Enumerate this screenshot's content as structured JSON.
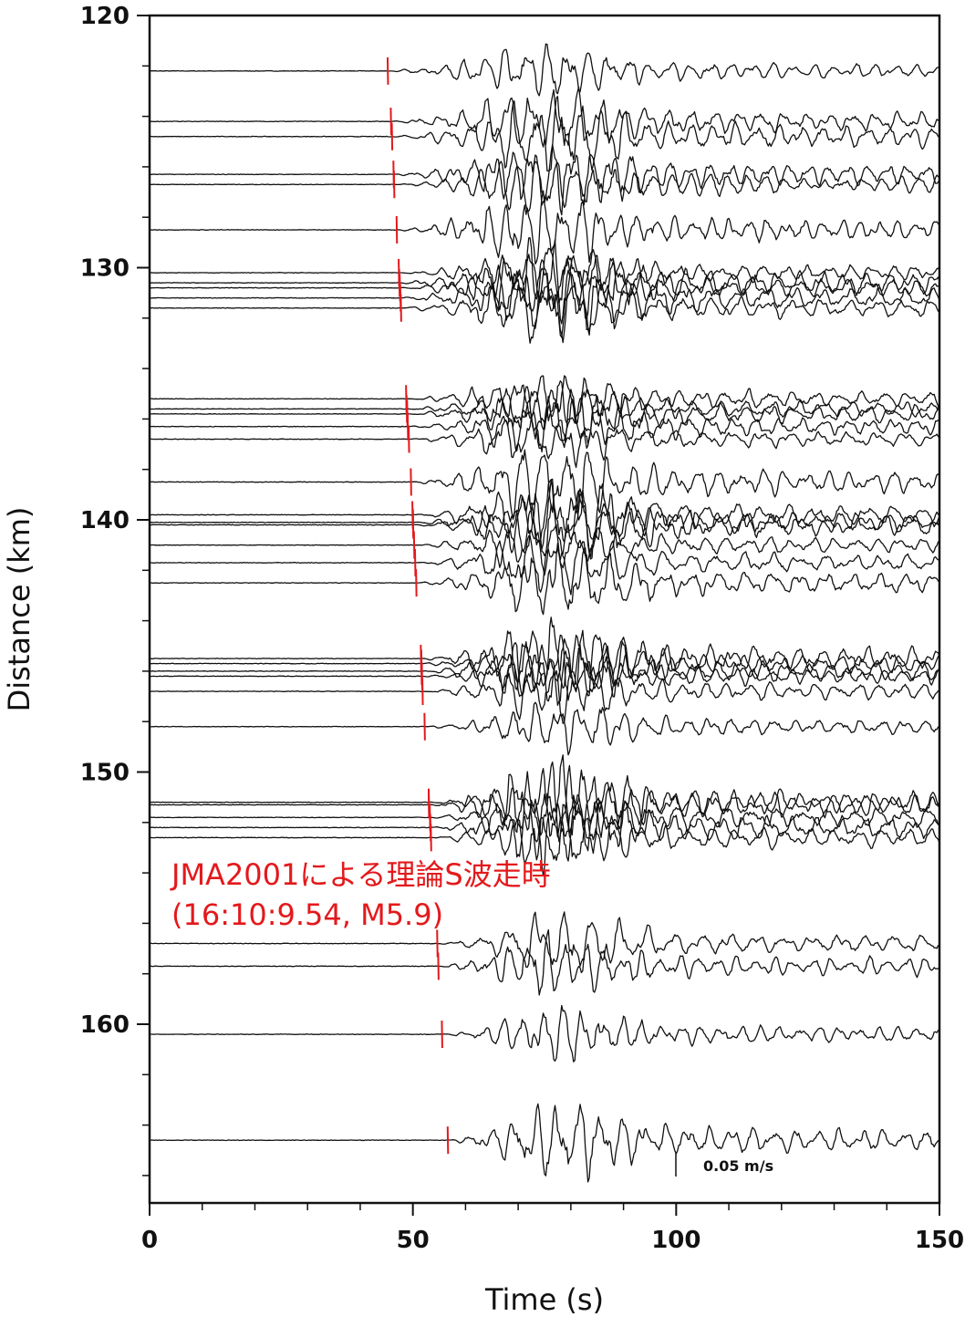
{
  "chart_data": {
    "type": "line",
    "xlabel": "Time (s)",
    "ylabel": "Distance (km)",
    "xlim": [
      0,
      150
    ],
    "ylim": [
      120,
      166
    ],
    "y_inverted": true,
    "x_ticks": [
      0,
      50,
      100,
      150
    ],
    "y_ticks": [
      120,
      130,
      140,
      150,
      160
    ],
    "grid": false,
    "annotation_line1": "JMA2001による理論S波走時",
    "annotation_line2": "(16:10:9.54, M5.9)",
    "scale_bar_label": "0.05 m/s",
    "marker_color": "#e3191c",
    "trace_color": "#111111",
    "traces": [
      {
        "distance_km": 122.2,
        "s_arrival_s": 45.2
      },
      {
        "distance_km": 124.2,
        "s_arrival_s": 45.8
      },
      {
        "distance_km": 124.8,
        "s_arrival_s": 46.0
      },
      {
        "distance_km": 126.3,
        "s_arrival_s": 46.3
      },
      {
        "distance_km": 126.7,
        "s_arrival_s": 46.4
      },
      {
        "distance_km": 128.5,
        "s_arrival_s": 46.9
      },
      {
        "distance_km": 130.2,
        "s_arrival_s": 47.3
      },
      {
        "distance_km": 130.6,
        "s_arrival_s": 47.4
      },
      {
        "distance_km": 130.8,
        "s_arrival_s": 47.5
      },
      {
        "distance_km": 131.2,
        "s_arrival_s": 47.6
      },
      {
        "distance_km": 131.6,
        "s_arrival_s": 47.7
      },
      {
        "distance_km": 135.2,
        "s_arrival_s": 48.7
      },
      {
        "distance_km": 135.6,
        "s_arrival_s": 48.8
      },
      {
        "distance_km": 135.8,
        "s_arrival_s": 48.9
      },
      {
        "distance_km": 136.3,
        "s_arrival_s": 49.0
      },
      {
        "distance_km": 136.8,
        "s_arrival_s": 49.2
      },
      {
        "distance_km": 138.5,
        "s_arrival_s": 49.6
      },
      {
        "distance_km": 139.8,
        "s_arrival_s": 49.9
      },
      {
        "distance_km": 140.1,
        "s_arrival_s": 50.0
      },
      {
        "distance_km": 140.2,
        "s_arrival_s": 50.0
      },
      {
        "distance_km": 141.0,
        "s_arrival_s": 50.2
      },
      {
        "distance_km": 141.7,
        "s_arrival_s": 50.4
      },
      {
        "distance_km": 142.5,
        "s_arrival_s": 50.6
      },
      {
        "distance_km": 145.5,
        "s_arrival_s": 51.5
      },
      {
        "distance_km": 145.7,
        "s_arrival_s": 51.6
      },
      {
        "distance_km": 146.0,
        "s_arrival_s": 51.6
      },
      {
        "distance_km": 146.2,
        "s_arrival_s": 51.7
      },
      {
        "distance_km": 146.8,
        "s_arrival_s": 51.8
      },
      {
        "distance_km": 148.2,
        "s_arrival_s": 52.2
      },
      {
        "distance_km": 151.2,
        "s_arrival_s": 53.0
      },
      {
        "distance_km": 151.3,
        "s_arrival_s": 53.0
      },
      {
        "distance_km": 151.8,
        "s_arrival_s": 53.2
      },
      {
        "distance_km": 152.2,
        "s_arrival_s": 53.3
      },
      {
        "distance_km": 152.6,
        "s_arrival_s": 53.4
      },
      {
        "distance_km": 156.8,
        "s_arrival_s": 54.6
      },
      {
        "distance_km": 157.7,
        "s_arrival_s": 54.8
      },
      {
        "distance_km": 160.4,
        "s_arrival_s": 55.5
      },
      {
        "distance_km": 164.6,
        "s_arrival_s": 56.6
      }
    ]
  }
}
